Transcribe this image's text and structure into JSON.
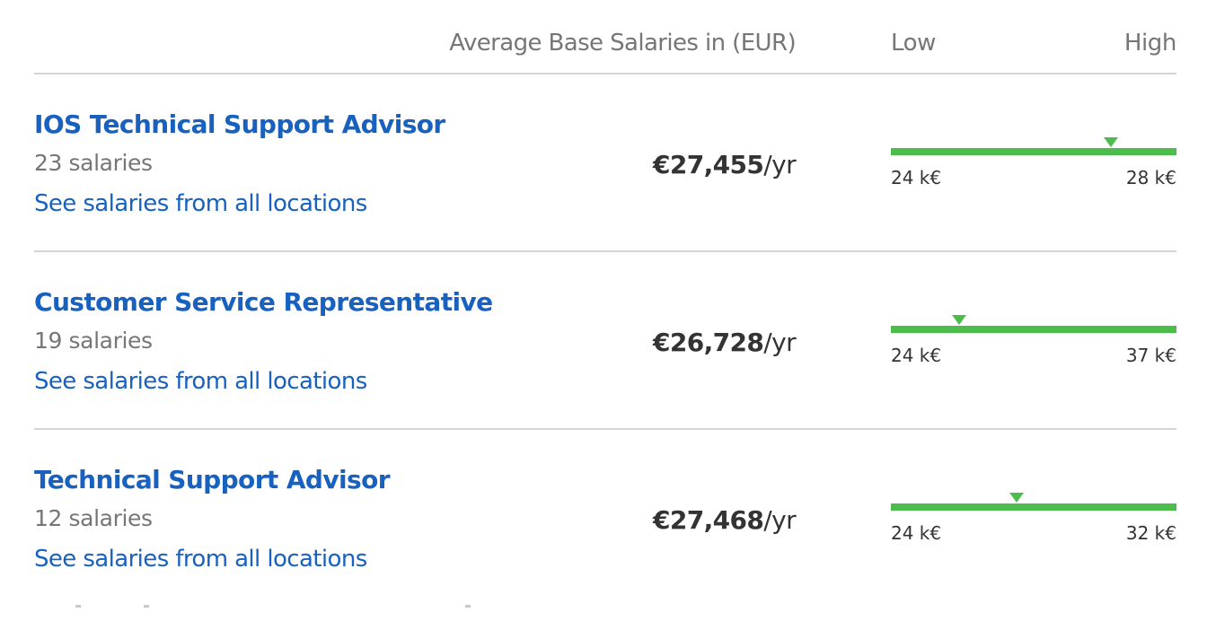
{
  "header": {
    "avg_label": "Average Base Salaries in (EUR)",
    "low_label": "Low",
    "high_label": "High"
  },
  "rows": [
    {
      "title": "IOS Technical Support Advisor",
      "count": "23 salaries",
      "link": "See salaries from all locations",
      "salary_amount": "€27,455",
      "salary_unit": "/yr",
      "range_low": "24 k€",
      "range_high": "28 k€",
      "marker_fraction": 0.77
    },
    {
      "title": "Customer Service Representative",
      "count": "19 salaries",
      "link": "See salaries from all locations",
      "salary_amount": "€26,728",
      "salary_unit": "/yr",
      "range_low": "24 k€",
      "range_high": "37 k€",
      "marker_fraction": 0.24
    },
    {
      "title": "Technical Support Advisor",
      "count": "12 salaries",
      "link": "See salaries from all locations",
      "salary_amount": "€27,468",
      "salary_unit": "/yr",
      "range_low": "24 k€",
      "range_high": "32 k€",
      "marker_fraction": 0.44
    }
  ],
  "colors": {
    "link": "#1861bf",
    "range_bar": "#4cbd4c",
    "muted_text": "#767676",
    "divider": "#d4d4d4"
  }
}
